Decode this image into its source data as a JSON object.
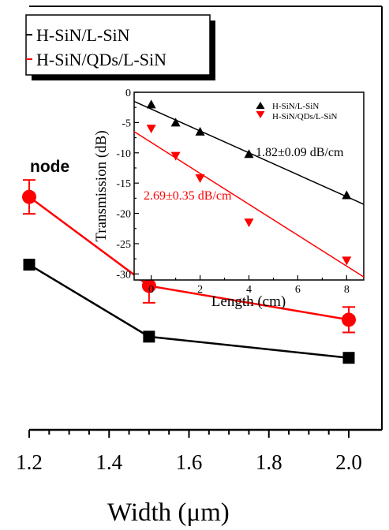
{
  "colors": {
    "black": "#000000",
    "red": "#ff0000"
  },
  "labels": {
    "partial_word": "node"
  },
  "chart_data": [
    {
      "type": "line",
      "xlabel": "Width (μm)",
      "ylabel": "",
      "tick_labels": [
        "1.2",
        "1.4",
        "1.6",
        "1.8",
        "2.0"
      ],
      "x": [
        1.2,
        1.5,
        2.0
      ],
      "xlim": [
        1.2,
        2.05
      ],
      "ylim": [
        0,
        1
      ],
      "grid": false,
      "legend_position": "top-left",
      "series": [
        {
          "name": "H-SiN/L-SiN",
          "color": "#000000",
          "marker": "square",
          "x": [
            1.2,
            1.5,
            2.0
          ],
          "y": [
            0.61,
            0.78,
            0.83
          ]
        },
        {
          "name": "H-SiN/QDs/L-SiN",
          "color": "#ff0000",
          "marker": "circle",
          "x": [
            1.2,
            1.5,
            2.0
          ],
          "y": [
            0.45,
            0.66,
            0.74
          ],
          "err": [
            0.04,
            0.04,
            0.03
          ]
        }
      ]
    },
    {
      "type": "scatter",
      "xlabel": "Length (cm)",
      "ylabel": "Transmission (dB)",
      "xlim": [
        -0.7,
        8.7
      ],
      "ylim": [
        -31,
        0
      ],
      "x_tick_labels": [
        "0",
        "2",
        "4",
        "6",
        "8"
      ],
      "y_tick_labels": [
        "0",
        "-5",
        "-10",
        "-15",
        "-20",
        "-25",
        "-30"
      ],
      "legend_position": "top-right",
      "series": [
        {
          "name": "H-SiN/L-SiN",
          "color": "#000000",
          "marker": "triangle-up",
          "x": [
            0,
            1,
            2,
            4,
            8
          ],
          "y": [
            -2,
            -5,
            -6.5,
            -10.2,
            -17
          ],
          "fit": {
            "y_at_xmin": -1.5,
            "y_at_xmax": -18.5
          },
          "annotation": "1.82±0.09 dB/cm"
        },
        {
          "name": "H-SiN/QDs/L-SiN",
          "color": "#ff0000",
          "marker": "triangle-down",
          "x": [
            0,
            1,
            2,
            4,
            8
          ],
          "y": [
            -6,
            -10.5,
            -14.2,
            -21.5,
            -27.8
          ],
          "fit": {
            "y_at_xmin": -6.5,
            "y_at_xmax": -30.5
          },
          "annotation": "2.69±0.35 dB/cm"
        }
      ]
    }
  ]
}
